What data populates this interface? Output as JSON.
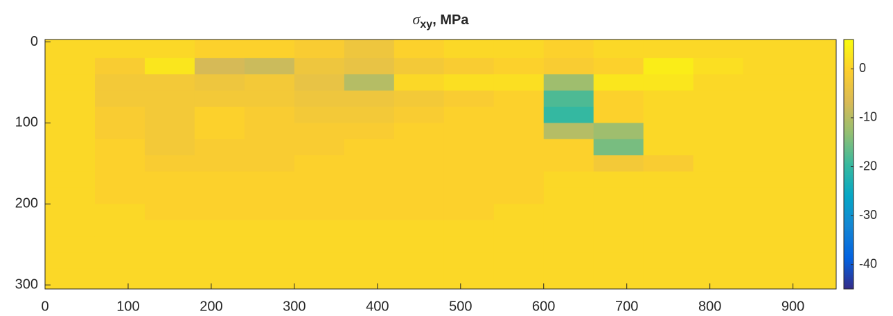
{
  "chart_data": {
    "type": "heatmap",
    "title": {
      "symbol": "σ",
      "subscript": "xy",
      "suffix": ", MPa"
    },
    "x": [
      30,
      90,
      150,
      210,
      270,
      330,
      390,
      450,
      510,
      570,
      630,
      690,
      750,
      810,
      870,
      930
    ],
    "y": [
      10,
      30,
      50,
      70,
      90,
      110,
      130,
      150,
      170,
      190,
      210,
      230,
      250,
      270,
      290
    ],
    "values": [
      [
        1,
        1,
        1,
        0,
        0,
        -1,
        -3,
        0,
        1,
        1,
        0,
        1,
        1,
        1,
        1,
        1
      ],
      [
        1,
        -1,
        3,
        -7,
        -8,
        -3,
        -4,
        -2,
        -1,
        0,
        -1,
        0,
        4,
        2,
        1,
        1
      ],
      [
        1,
        -2,
        -2,
        -3,
        -2,
        -4,
        -10,
        1,
        2,
        2,
        -12,
        3,
        3,
        1,
        1,
        1
      ],
      [
        1,
        -2,
        -2,
        -2,
        -2,
        -3,
        -3,
        -2,
        -1,
        0,
        -18,
        0,
        1,
        1,
        1,
        1
      ],
      [
        1,
        -1,
        -2,
        0,
        -1,
        -2,
        -2,
        -1,
        0,
        0,
        -20,
        0,
        1,
        1,
        1,
        1
      ],
      [
        1,
        -1,
        -2,
        0,
        -1,
        -1,
        -1,
        0,
        0,
        0,
        -10,
        -12,
        1,
        1,
        1,
        1
      ],
      [
        1,
        0,
        -2,
        -1,
        -1,
        -1,
        0,
        0,
        0,
        0,
        0,
        -15,
        1,
        1,
        1,
        1
      ],
      [
        1,
        0,
        -1,
        -1,
        -1,
        0,
        0,
        0,
        0,
        0,
        0,
        -2,
        -1,
        1,
        1,
        1
      ],
      [
        1,
        0,
        0,
        0,
        0,
        0,
        0,
        0,
        0,
        0,
        1,
        1,
        1,
        1,
        1,
        1
      ],
      [
        1,
        0,
        0,
        0,
        0,
        0,
        0,
        0,
        0,
        0,
        1,
        1,
        1,
        1,
        1,
        1
      ],
      [
        1,
        1,
        0,
        0,
        0,
        0,
        0,
        0,
        0,
        1,
        1,
        1,
        1,
        1,
        1,
        1
      ],
      [
        1,
        1,
        1,
        1,
        1,
        1,
        1,
        1,
        1,
        1,
        1,
        1,
        1,
        1,
        1,
        1
      ],
      [
        1,
        1,
        1,
        1,
        1,
        1,
        1,
        1,
        1,
        1,
        1,
        1,
        1,
        1,
        1,
        1
      ],
      [
        1,
        1,
        1,
        1,
        1,
        1,
        1,
        1,
        1,
        1,
        1,
        1,
        1,
        1,
        1,
        1
      ],
      [
        1,
        1,
        1,
        1,
        1,
        1,
        1,
        1,
        1,
        1,
        1,
        1,
        1,
        1,
        1,
        1
      ]
    ],
    "xlim": [
      0,
      952
    ],
    "ylim": [
      -3,
      305
    ],
    "y_reversed": true,
    "xticks": [
      0,
      100,
      200,
      300,
      400,
      500,
      600,
      700,
      800,
      900
    ],
    "yticks": [
      0,
      100,
      200,
      300
    ],
    "clim": [
      -45,
      6
    ],
    "cticks": [
      0,
      -10,
      -20,
      -30,
      -40
    ],
    "colormap": [
      "#352a87",
      "#0363e1",
      "#1485d4",
      "#06a7c6",
      "#38b99e",
      "#92bf73",
      "#d9ba56",
      "#fcce2e",
      "#f9fb0e"
    ]
  }
}
